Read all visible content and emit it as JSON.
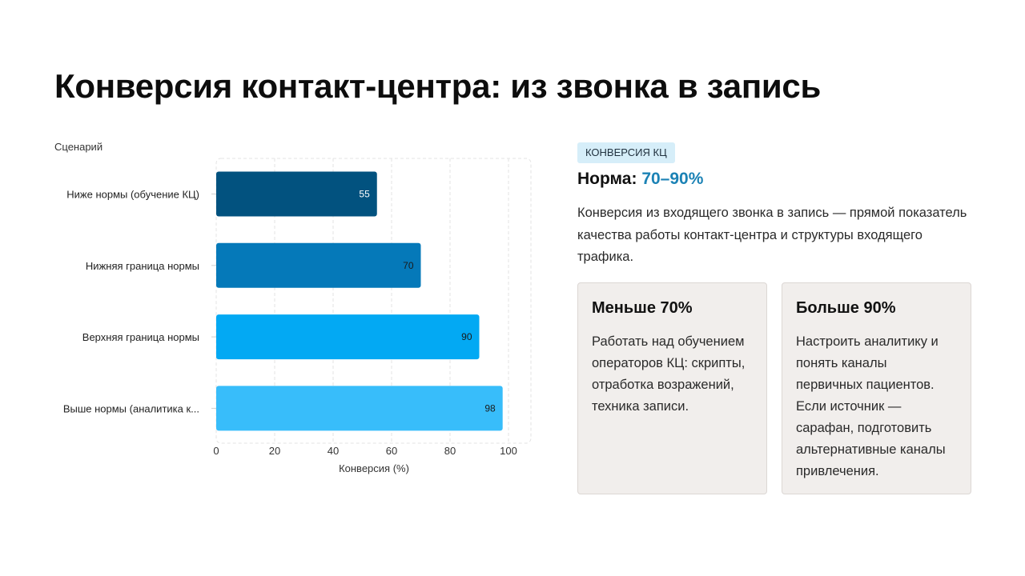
{
  "title": "Конверсия контакт-центра: из звонка в запись",
  "chart_data": {
    "type": "bar",
    "orientation": "horizontal",
    "categories": [
      "Ниже нормы (обучение КЦ)",
      "Нижняя граница нормы",
      "Верхняя граница нормы",
      "Выше нормы (аналитика к..."
    ],
    "values": [
      55,
      70,
      90,
      98
    ],
    "data_labels": [
      "55",
      "70",
      "90",
      "98"
    ],
    "bar_colors": [
      "#02527f",
      "#0579b9",
      "#03a9f3",
      "#38bdfa"
    ],
    "category_axis_label": "Сценарий",
    "xlabel": "Конверсия (%)",
    "xlim": [
      0,
      100
    ],
    "xticks": [
      0,
      20,
      40,
      60,
      80,
      100
    ],
    "grid": true
  },
  "panel": {
    "tag": "КОНВЕРСИЯ КЦ",
    "norm_label": "Норма:",
    "norm_value": "70–90%",
    "description": "Конверсия из входящего звонка в запись — прямой показатель качества работы контакт-центра и структуры входящего трафика.",
    "cards": [
      {
        "title": "Меньше 70%",
        "text": "Работать над обучением операторов КЦ: скрипты, отработка возражений, техника записи."
      },
      {
        "title": "Больше 90%",
        "text": "Настроить аналитику и понять каналы первичных пациентов. Если источник — сарафан, подготовить альтернативные каналы привлечения."
      }
    ]
  }
}
